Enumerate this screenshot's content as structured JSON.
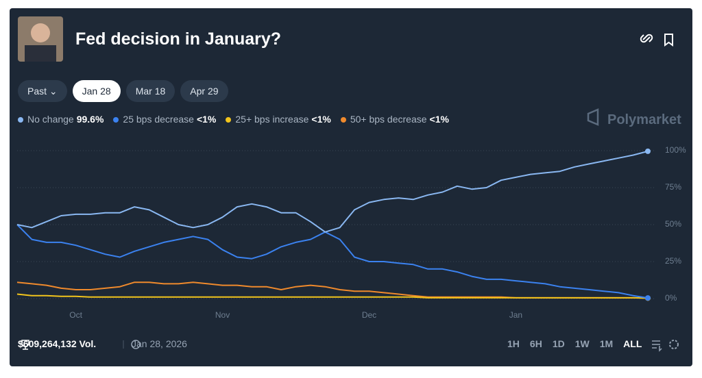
{
  "header": {
    "title": "Fed decision in January?"
  },
  "tabs": [
    "Past",
    "Jan 28",
    "Mar 18",
    "Apr 29"
  ],
  "brand": "Polymarket",
  "footer": {
    "volume": "$609,264,132 Vol.",
    "date": "Jan 28, 2026",
    "ranges": [
      "1H",
      "6H",
      "1D",
      "1W",
      "1M",
      "ALL"
    ]
  },
  "chart_data": {
    "type": "line",
    "categories": [
      null,
      null,
      null,
      null,
      "Oct",
      null,
      null,
      null,
      null,
      null,
      null,
      null,
      null,
      null,
      "Nov",
      null,
      null,
      null,
      null,
      null,
      null,
      null,
      null,
      null,
      "Dec",
      null,
      null,
      null,
      null,
      null,
      null,
      null,
      null,
      null,
      "Jan",
      null,
      null,
      null,
      null,
      null,
      null,
      null,
      null,
      null
    ],
    "ylim": [
      0,
      100
    ],
    "yticks": [
      {
        "value": 0,
        "label": "0%"
      },
      {
        "value": 25,
        "label": "25%"
      },
      {
        "value": 50,
        "label": "50%"
      },
      {
        "value": 75,
        "label": "75%"
      },
      {
        "value": 100,
        "label": "100%"
      }
    ],
    "grid": true,
    "series": [
      {
        "name": "No change",
        "legend_value": "99.6%",
        "color": "#8ab8f2",
        "values": [
          50,
          48,
          52,
          56,
          57,
          57,
          58,
          58,
          62,
          60,
          55,
          50,
          48,
          50,
          55,
          62,
          64,
          62,
          58,
          58,
          52,
          45,
          48,
          60,
          65,
          67,
          68,
          67,
          70,
          72,
          76,
          74,
          75,
          80,
          82,
          84,
          85,
          86,
          89,
          91,
          93,
          95,
          97,
          99.6
        ]
      },
      {
        "name": "25 bps decrease",
        "legend_value": "<1%",
        "color": "#3b82f0",
        "values": [
          50,
          40,
          38,
          38,
          36,
          33,
          30,
          28,
          32,
          35,
          38,
          40,
          42,
          40,
          33,
          28,
          27,
          30,
          35,
          38,
          40,
          45,
          40,
          28,
          25,
          25,
          24,
          23,
          20,
          20,
          18,
          15,
          13,
          13,
          12,
          11,
          10,
          8,
          7,
          6,
          5,
          4,
          2,
          0.4
        ]
      },
      {
        "name": "25+ bps increase",
        "legend_value": "<1%",
        "color": "#f2c41c",
        "values": [
          3,
          2,
          2,
          1.5,
          1.5,
          1,
          1,
          1,
          1,
          1,
          1,
          1,
          1,
          1,
          1,
          1,
          1,
          1,
          1,
          1,
          1,
          1,
          1,
          1,
          1,
          1,
          1,
          1,
          0.5,
          0.5,
          0.5,
          0.5,
          0.5,
          0.5,
          0.5,
          0.5,
          0.5,
          0.5,
          0.5,
          0.5,
          0.5,
          0.5,
          0.5,
          0.3
        ]
      },
      {
        "name": "50+ bps decrease",
        "legend_value": "<1%",
        "color": "#f08a2c",
        "values": [
          11,
          10,
          9,
          7,
          6,
          6,
          7,
          8,
          11,
          11,
          10,
          10,
          11,
          10,
          9,
          9,
          8,
          8,
          6,
          8,
          9,
          8,
          6,
          5,
          5,
          4,
          3,
          2,
          1,
          1,
          1,
          1,
          1,
          1,
          0.5,
          0.5,
          0.5,
          0.5,
          0.5,
          0.5,
          0.5,
          0.5,
          0.5,
          0.3
        ]
      }
    ]
  }
}
